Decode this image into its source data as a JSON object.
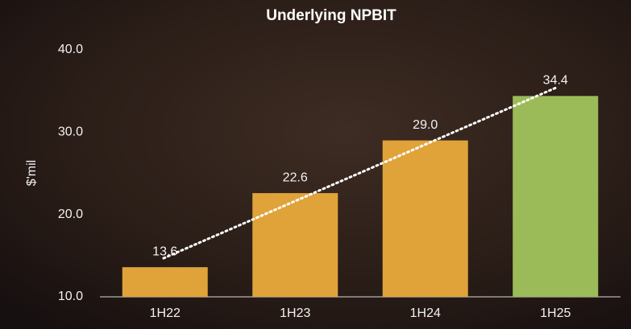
{
  "chart_data": {
    "type": "bar",
    "title": "Underlying NPBIT",
    "y_label": "$'mil",
    "categories": [
      "1H22",
      "1H23",
      "1H24",
      "1H25"
    ],
    "values": [
      13.6,
      22.6,
      29.0,
      34.4
    ],
    "value_labels": [
      "13.6",
      "22.6",
      "29.0",
      "34.4"
    ],
    "colors": [
      "#e0a33a",
      "#e0a33a",
      "#e0a33a",
      "#9bbb59"
    ],
    "ylim": [
      10,
      40
    ],
    "yticks": [
      {
        "value": 10,
        "label": "10.0"
      },
      {
        "value": 20,
        "label": "20.0"
      },
      {
        "value": 30,
        "label": "30.0"
      },
      {
        "value": 40,
        "label": "40.0"
      }
    ],
    "grid": false
  }
}
